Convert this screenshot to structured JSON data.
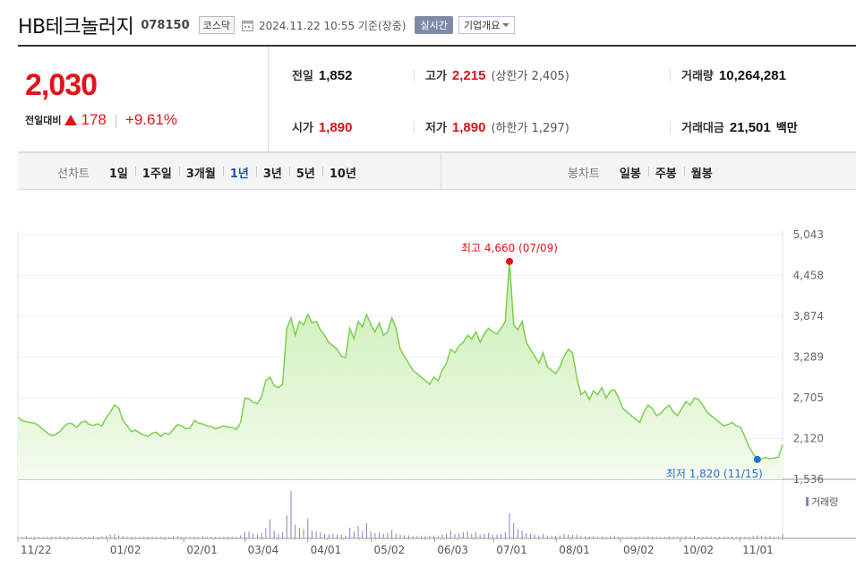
{
  "header": {
    "stock_name": "HB테크놀러지",
    "stock_code": "078150",
    "market": "코스닥",
    "timestamp": "2024.11.22 10:55  기준(장중)",
    "realtime_label": "실시간",
    "overview_label": "기업개요"
  },
  "quote": {
    "current_price": "2,030",
    "change_label": "전일대비",
    "change_value": "178",
    "change_pct": "+9.61%",
    "prev_close_label": "전일",
    "prev_close": "1,852",
    "open_label": "시가",
    "open": "1,890",
    "high_label": "고가",
    "high": "2,215",
    "upper_limit_label": "(상한가 2,405)",
    "low_label": "저가",
    "low": "1,890",
    "lower_limit_label": "(하한가 1,297)",
    "volume_label": "거래량",
    "volume": "10,264,281",
    "trade_value_label": "거래대금",
    "trade_value": "21,501",
    "trade_value_unit": "백만"
  },
  "tabs": {
    "line_chart_label": "선차트",
    "line_periods": [
      "1일",
      "1주일",
      "3개월",
      "1년",
      "3년",
      "5년",
      "10년"
    ],
    "active_period": "1년",
    "candle_chart_label": "봉차트",
    "candle_periods": [
      "일봉",
      "주봉",
      "월봉"
    ]
  },
  "chart_data": {
    "type": "area",
    "title": "",
    "y_ticks": [
      "5,043",
      "4,458",
      "3,874",
      "3,289",
      "2,705",
      "2,120",
      "1,536"
    ],
    "ylim": [
      1536,
      5043
    ],
    "x_ticks": [
      "11/22",
      "01/02",
      "02/01",
      "03/04",
      "04/01",
      "05/02",
      "06/03",
      "07/01",
      "08/01",
      "09/02",
      "10/02",
      "11/01"
    ],
    "high_annotation": "최고 4,660 (07/09)",
    "low_annotation": "최저 1,820 (11/15)",
    "volume_legend": "거래량",
    "colors": {
      "line": "#7bcf4f",
      "fill_top": "#d6f3c2",
      "high": "#e3121a",
      "low": "#2a6fd0",
      "volume": "#8a80c0"
    },
    "series": [
      {
        "name": "price",
        "values": [
          2420,
          2380,
          2360,
          2350,
          2340,
          2300,
          2250,
          2200,
          2160,
          2180,
          2220,
          2290,
          2340,
          2330,
          2280,
          2350,
          2370,
          2320,
          2310,
          2330,
          2300,
          2420,
          2500,
          2600,
          2560,
          2380,
          2300,
          2220,
          2240,
          2200,
          2170,
          2150,
          2200,
          2210,
          2150,
          2200,
          2180,
          2250,
          2320,
          2300,
          2260,
          2270,
          2380,
          2340,
          2330,
          2300,
          2290,
          2260,
          2280,
          2300,
          2280,
          2280,
          2250,
          2350,
          2700,
          2690,
          2640,
          2620,
          2720,
          2950,
          3000,
          2880,
          2850,
          2900,
          3700,
          3850,
          3600,
          3800,
          3750,
          3900,
          3780,
          3800,
          3680,
          3600,
          3500,
          3450,
          3400,
          3300,
          3280,
          3700,
          3550,
          3800,
          3720,
          3900,
          3750,
          3650,
          3780,
          3600,
          3650,
          3850,
          3700,
          3400,
          3300,
          3200,
          3100,
          3050,
          3000,
          2950,
          2900,
          3000,
          2950,
          3100,
          3200,
          3400,
          3350,
          3450,
          3500,
          3600,
          3550,
          3650,
          3500,
          3620,
          3700,
          3650,
          3620,
          3700,
          3800,
          4660,
          3750,
          3680,
          3800,
          3500,
          3400,
          3300,
          3200,
          3350,
          3150,
          3100,
          3050,
          3150,
          3300,
          3400,
          3350,
          3000,
          2750,
          2800,
          2680,
          2800,
          2750,
          2850,
          2700,
          2800,
          2820,
          2700,
          2550,
          2500,
          2450,
          2400,
          2350,
          2500,
          2600,
          2550,
          2450,
          2480,
          2550,
          2600,
          2500,
          2450,
          2550,
          2650,
          2600,
          2700,
          2680,
          2600,
          2500,
          2450,
          2400,
          2350,
          2300,
          2320,
          2350,
          2300,
          2280,
          2150,
          2000,
          1900,
          1820,
          1830,
          1850,
          1830,
          1840,
          1850,
          2030
        ]
      }
    ],
    "volume_values": [
      2,
      2,
      3,
      2,
      2,
      2,
      2,
      2,
      2,
      2,
      3,
      2,
      2,
      2,
      2,
      2,
      2,
      2,
      3,
      2,
      3,
      3,
      5,
      6,
      4,
      3,
      2,
      2,
      2,
      2,
      2,
      2,
      2,
      2,
      2,
      2,
      2,
      3,
      3,
      2,
      2,
      2,
      2,
      2,
      3,
      2,
      2,
      2,
      2,
      2,
      2,
      2,
      2,
      4,
      8,
      9,
      6,
      5,
      7,
      13,
      25,
      10,
      6,
      8,
      30,
      62,
      18,
      14,
      12,
      26,
      10,
      9,
      8,
      6,
      5,
      6,
      5,
      5,
      4,
      14,
      9,
      16,
      10,
      20,
      9,
      7,
      8,
      6,
      7,
      11,
      6,
      5,
      4,
      4,
      3,
      3,
      3,
      3,
      3,
      4,
      3,
      5,
      6,
      10,
      6,
      7,
      8,
      9,
      6,
      8,
      5,
      6,
      7,
      5,
      5,
      6,
      8,
      33,
      20,
      12,
      10,
      7,
      6,
      5,
      4,
      6,
      4,
      3,
      3,
      4,
      6,
      5,
      5,
      5,
      3,
      3,
      2,
      3,
      2,
      3,
      2,
      3,
      3,
      2,
      2,
      2,
      2,
      2,
      2,
      2,
      3,
      2,
      2,
      2,
      2,
      3,
      2,
      2,
      2,
      3,
      2,
      3,
      2,
      2,
      2,
      2,
      2,
      2,
      2,
      2,
      2,
      2,
      2,
      2,
      2,
      3,
      4,
      3,
      3,
      3,
      2,
      2,
      6
    ]
  }
}
